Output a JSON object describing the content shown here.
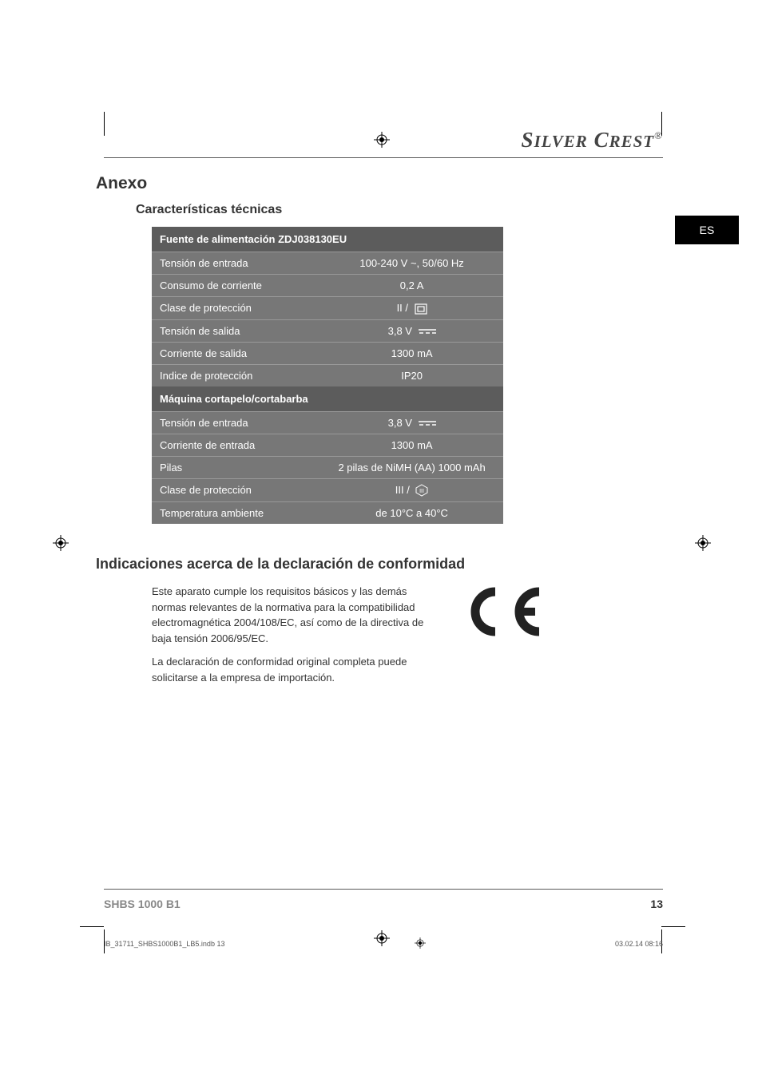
{
  "brand": "SilverCrest",
  "lang_tab": "ES",
  "h1": "Anexo",
  "h2_specs": "Características técnicas",
  "table": {
    "header1": "Fuente de alimentación ZDJ038130EU",
    "rows1": [
      {
        "label": "Tensión de entrada",
        "value": "100-240 V ~, 50/60 Hz"
      },
      {
        "label": "Consumo de corriente",
        "value": "0,2 A"
      },
      {
        "label": "Clase de protección",
        "value": "II /",
        "icon": "class2"
      },
      {
        "label": "Tensión de salida",
        "value": "3,8 V",
        "icon": "dc"
      },
      {
        "label": "Corriente de salida",
        "value": "1300 mA"
      },
      {
        "label": "Indice de protección",
        "value": "IP20"
      }
    ],
    "header2": "Máquina cortapelo/cortabarba",
    "rows2": [
      {
        "label": "Tensión de entrada",
        "value": "3,8 V",
        "icon": "dc"
      },
      {
        "label": "Corriente de entrada",
        "value": "1300 mA"
      },
      {
        "label": "Pilas",
        "value": "2 pilas de NiMH (AA) 1000 mAh"
      },
      {
        "label": "Clase de protección",
        "value": "III /",
        "icon": "class3"
      },
      {
        "label": "Temperatura ambiente",
        "value": "de 10°C a 40°C"
      }
    ]
  },
  "h2_conform": "Indicaciones acerca de la declaración de conformidad",
  "conform_p1": "Este aparato cumple los requisitos básicos y las demás normas relevantes de la normativa para la compatibilidad electromagnética 2004/108/EC, así como de la directiva de baja tensión 2006/95/EC.",
  "conform_p2": "La declaración de conformidad original completa puede solicitarse a la empresa de importación.",
  "footer_model": "SHBS 1000 B1",
  "footer_page": "13",
  "print_file": "IB_31711_SHBS1000B1_LB5.indb   13",
  "print_ts": "03.02.14   08:16",
  "colors": {
    "header_bg": "#5c5c5c",
    "row_bg": "#777777",
    "text_light": "#ffffff",
    "rule": "#5a5a5a",
    "lang_bg": "#000000"
  }
}
